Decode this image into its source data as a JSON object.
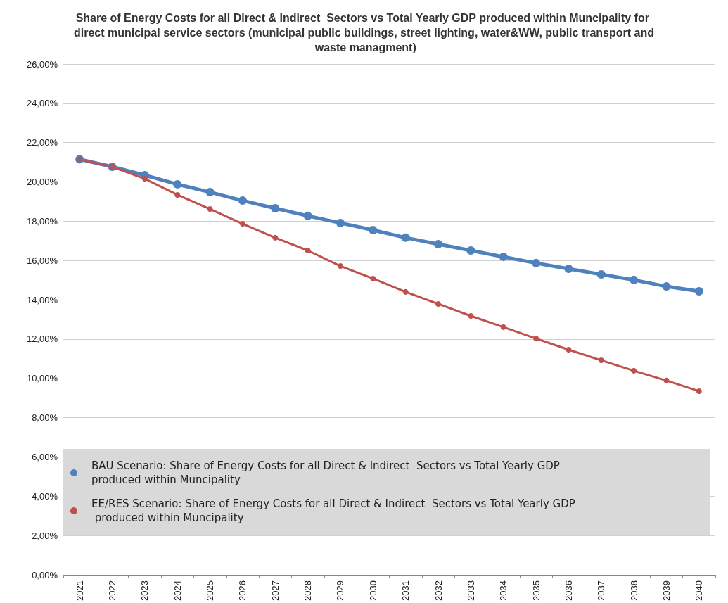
{
  "chart_data": {
    "type": "line",
    "title": "Share of Energy Costs for all Direct & Indirect  Sectors vs Total Yearly GDP produced within Muncipality for direct municipal service sectors (municipal public buildings, street lighting, water&WW, public transport and waste managment)",
    "categories": [
      "2021",
      "2022",
      "2023",
      "2024",
      "2025",
      "2026",
      "2027",
      "2028",
      "2029",
      "2030",
      "2031",
      "2032",
      "2033",
      "2034",
      "2035",
      "2036",
      "2037",
      "2038",
      "2039",
      "2040"
    ],
    "series": [
      {
        "name": "BAU Scenario: Share of Energy Costs for all Direct & Indirect  Sectors vs Total Yearly GDP produced within Muncipality",
        "color": "#4f81bd",
        "values": [
          21.15,
          20.77,
          20.34,
          19.88,
          19.48,
          19.05,
          18.66,
          18.27,
          17.91,
          17.55,
          17.16,
          16.83,
          16.51,
          16.19,
          15.87,
          15.58,
          15.29,
          15.01,
          14.68,
          14.43
        ]
      },
      {
        "name": "EE/RES Scenario: Share of Energy Costs for all Direct & Indirect  Sectors vs Total Yearly GDP produced within Muncipality",
        "color": "#c0504d",
        "values": [
          21.15,
          20.77,
          20.16,
          19.34,
          18.62,
          17.87,
          17.16,
          16.51,
          15.72,
          15.08,
          14.4,
          13.79,
          13.18,
          12.61,
          12.03,
          11.46,
          10.92,
          10.39,
          9.89,
          9.35
        ]
      }
    ],
    "ylim": [
      0,
      26
    ],
    "yticks": [
      {
        "value": 0,
        "label": "0,00%"
      },
      {
        "value": 2,
        "label": "2,00%"
      },
      {
        "value": 4,
        "label": "4,00%"
      },
      {
        "value": 6,
        "label": "6,00%"
      },
      {
        "value": 8,
        "label": "8,00%"
      },
      {
        "value": 10,
        "label": "10,00%"
      },
      {
        "value": 12,
        "label": "12,00%"
      },
      {
        "value": 14,
        "label": "14,00%"
      },
      {
        "value": 16,
        "label": "16,00%"
      },
      {
        "value": 18,
        "label": "18,00%"
      },
      {
        "value": 20,
        "label": "20,00%"
      },
      {
        "value": 22,
        "label": "22,00%"
      },
      {
        "value": 24,
        "label": "24,00%"
      },
      {
        "value": 26,
        "label": "26,00%"
      }
    ],
    "grid": "y",
    "legend": "bottom",
    "marker": "circle",
    "line_style": "solid"
  }
}
